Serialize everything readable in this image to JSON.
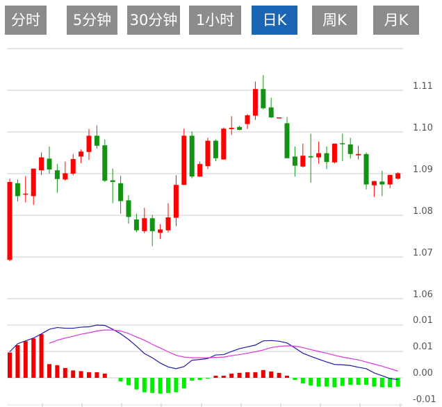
{
  "tabs": [
    {
      "label": "分时线",
      "active": false
    },
    {
      "label": "5分钟",
      "active": false
    },
    {
      "label": "30分钟",
      "active": false
    },
    {
      "label": "1小时",
      "active": false
    },
    {
      "label": "日K",
      "active": true
    },
    {
      "label": "周K",
      "active": false
    },
    {
      "label": "月K",
      "active": false
    }
  ],
  "colors": {
    "tab_bg": "#8c8c8c",
    "tab_active": "#1a66b5",
    "up": "#ff0000",
    "down": "#129412",
    "hist_up": "#ee0000",
    "hist_down": "#00ee00",
    "dif": "#1a1aaa",
    "dea": "#dd33dd",
    "grid": "#dddddd"
  },
  "chart_data": [
    {
      "type": "candlestick",
      "ylim": [
        1.06,
        1.12
      ],
      "ytick_labels": [
        "1.11",
        "1.10",
        "1.09",
        "1.08",
        "1.07",
        "1.06"
      ],
      "ytick_values": [
        1.11,
        1.1,
        1.09,
        1.08,
        1.07,
        1.06
      ],
      "grid": true,
      "ohlc": [
        [
          1.0693,
          1.0888,
          1.069,
          1.088
        ],
        [
          1.0877,
          1.0886,
          1.0833,
          1.0846
        ],
        [
          1.085,
          1.0894,
          1.0831,
          1.0852
        ],
        [
          1.0846,
          1.0912,
          1.0825,
          1.0912
        ],
        [
          1.0908,
          1.0951,
          1.0897,
          1.0939
        ],
        [
          1.0936,
          1.0965,
          1.09,
          1.091
        ],
        [
          1.0908,
          1.0923,
          1.0854,
          1.0887
        ],
        [
          1.0886,
          1.0929,
          1.0883,
          1.0901
        ],
        [
          1.09,
          1.0947,
          1.0896,
          1.0935
        ],
        [
          1.0941,
          1.0958,
          1.0925,
          1.0953
        ],
        [
          1.0952,
          1.1007,
          1.0933,
          1.0991
        ],
        [
          1.0991,
          1.1016,
          1.096,
          1.0967
        ],
        [
          1.0968,
          1.0982,
          1.088,
          1.0883
        ],
        [
          1.0884,
          1.0912,
          1.0829,
          1.088
        ],
        [
          1.0877,
          1.0895,
          1.0804,
          1.0834
        ],
        [
          1.0836,
          1.0848,
          1.078,
          1.0796
        ],
        [
          1.079,
          1.0804,
          1.076,
          1.0764
        ],
        [
          1.0762,
          1.0818,
          1.0757,
          1.0793
        ],
        [
          1.0793,
          1.0801,
          1.0726,
          1.0762
        ],
        [
          1.0758,
          1.0779,
          1.0743,
          1.0766
        ],
        [
          1.0764,
          1.0829,
          1.0759,
          1.0795
        ],
        [
          1.0794,
          1.0896,
          1.0774,
          1.0873
        ],
        [
          1.0873,
          1.1008,
          1.0873,
          1.0991
        ],
        [
          1.0991,
          1.1001,
          1.0889,
          1.0893
        ],
        [
          1.0893,
          1.0929,
          1.0892,
          1.0923
        ],
        [
          1.0918,
          1.0986,
          1.0911,
          1.0979
        ],
        [
          1.0979,
          1.0982,
          1.093,
          1.0937
        ],
        [
          1.0934,
          1.1011,
          1.0933,
          1.1008
        ],
        [
          1.1007,
          1.1038,
          1.0993,
          1.101
        ],
        [
          1.1012,
          1.1015,
          1.1004,
          1.1005
        ],
        [
          1.1019,
          1.1043,
          1.1007,
          1.104
        ],
        [
          1.1039,
          1.1121,
          1.1029,
          1.1103
        ],
        [
          1.1103,
          1.1136,
          1.1054,
          1.1057
        ],
        [
          1.1059,
          1.1082,
          1.1033,
          1.1035
        ],
        [
          1.1033,
          1.1035,
          1.1033,
          1.1035
        ],
        [
          1.1021,
          1.1036,
          1.0937,
          1.0937
        ],
        [
          1.0941,
          1.0965,
          1.0893,
          1.0919
        ],
        [
          1.0917,
          1.0972,
          1.0915,
          1.0943
        ],
        [
          1.0942,
          1.0996,
          1.0878,
          1.0939
        ],
        [
          1.0939,
          1.0977,
          1.0924,
          1.0949
        ],
        [
          1.0949,
          1.0965,
          1.0911,
          1.0928
        ],
        [
          1.0927,
          1.0972,
          1.0924,
          1.0972
        ],
        [
          1.0973,
          1.0996,
          1.093,
          1.0971
        ],
        [
          1.097,
          1.0986,
          1.0936,
          1.0947
        ],
        [
          1.0944,
          1.0967,
          1.0934,
          1.0947
        ],
        [
          1.0947,
          1.0951,
          1.0862,
          1.0874
        ],
        [
          1.0872,
          1.0883,
          1.0844,
          1.0882
        ],
        [
          1.0881,
          1.0907,
          1.0846,
          1.0874
        ],
        [
          1.0874,
          1.0897,
          1.0865,
          1.0897
        ],
        [
          1.0888,
          1.0903,
          1.0886,
          1.0901
        ]
      ]
    },
    {
      "type": "macd",
      "ytick_labels": [
        "0.01",
        "0.01",
        "0.00",
        "-0.01"
      ],
      "ytick_values": [
        0.015,
        0.0075,
        0,
        -0.0075
      ],
      "grid": true,
      "histogram": [
        0.0072,
        0.0093,
        0.0104,
        0.0112,
        0.0124,
        0.0039,
        0.0036,
        0.0028,
        0.0021,
        0.0019,
        0.0016,
        0.0016,
        0.0012,
        0.0,
        -0.001,
        -0.0021,
        -0.0033,
        -0.0041,
        -0.0043,
        -0.0045,
        -0.0043,
        -0.0041,
        -0.003,
        -0.0008,
        -0.0006,
        -0.0002,
        0.0006,
        0.0006,
        0.0012,
        0.0014,
        0.0016,
        0.0016,
        0.0022,
        0.0018,
        0.0014,
        0.0006,
        -0.0006,
        -0.0016,
        -0.0022,
        -0.0025,
        -0.0025,
        -0.0027,
        -0.0023,
        -0.002,
        -0.002,
        -0.002,
        -0.0025,
        -0.0027,
        -0.0027,
        -0.0025
      ],
      "dif": [
        0.0074,
        0.0097,
        0.0105,
        0.0113,
        0.0125,
        0.0138,
        0.0143,
        0.0141,
        0.0141,
        0.0144,
        0.0145,
        0.015,
        0.0149,
        0.0138,
        0.0125,
        0.0109,
        0.009,
        0.0069,
        0.0057,
        0.0042,
        0.0031,
        0.0026,
        0.0032,
        0.005,
        0.0052,
        0.0055,
        0.0065,
        0.0066,
        0.0075,
        0.0083,
        0.0088,
        0.0093,
        0.0105,
        0.0106,
        0.0104,
        0.0099,
        0.0085,
        0.007,
        0.0061,
        0.0053,
        0.0045,
        0.0038,
        0.0037,
        0.0035,
        0.003,
        0.0026,
        0.0014,
        0.0006,
        -0.0002,
        -0.0005
      ],
      "dea": [
        null,
        null,
        null,
        null,
        null,
        0.0098,
        0.0107,
        0.0113,
        0.0118,
        0.0124,
        0.0128,
        0.0133,
        0.0136,
        0.0136,
        0.0133,
        0.0126,
        0.0116,
        0.0107,
        0.0095,
        0.0085,
        0.0074,
        0.0064,
        0.0059,
        0.0057,
        0.0057,
        0.0057,
        0.0058,
        0.0059,
        0.0063,
        0.0066,
        0.007,
        0.0074,
        0.0079,
        0.0086,
        0.0089,
        0.0091,
        0.009,
        0.0086,
        0.008,
        0.0075,
        0.007,
        0.0064,
        0.0059,
        0.0055,
        0.0051,
        0.0045,
        0.0039,
        0.0033,
        0.0026,
        0.0019
      ]
    }
  ]
}
